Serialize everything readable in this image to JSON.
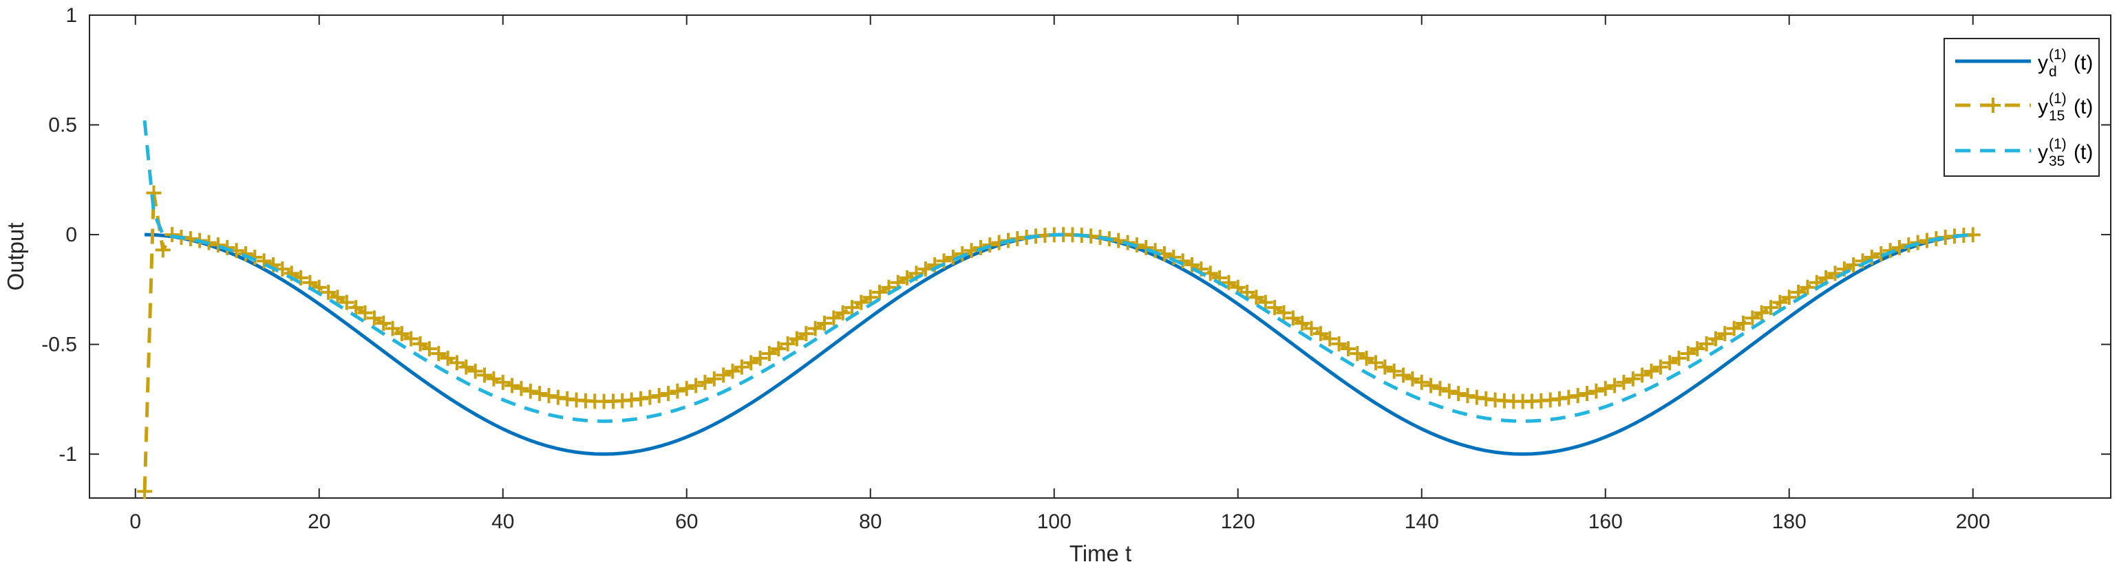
{
  "chart_data": {
    "type": "line",
    "title": "",
    "xlabel": "Time t",
    "ylabel": "Output",
    "xlim": [
      -5,
      215
    ],
    "ylim": [
      -1.2,
      1
    ],
    "xticks": [
      0,
      20,
      40,
      60,
      80,
      100,
      120,
      140,
      160,
      180,
      200
    ],
    "yticks": [
      1,
      0.5,
      0,
      -0.5,
      -1
    ],
    "ytick_labels": [
      "1",
      "0.5",
      "0",
      "-0.5",
      "-1"
    ],
    "grid": false,
    "legend_position": "top-right",
    "series": [
      {
        "name": "y_d^(1)(t)",
        "legend": {
          "base": "y",
          "sub": "d",
          "sup": "(1)",
          "suffix": "(t)"
        },
        "color": "#0072BD",
        "style": "solid",
        "marker": "none",
        "formula": "0.5*cos(2*pi*(t-1)/100) - 0.5",
        "t_range": [
          1,
          200
        ]
      },
      {
        "name": "y_15^(1)(t)",
        "legend": {
          "base": "y",
          "sub": "15",
          "sup": "(1)",
          "suffix": "(t)"
        },
        "color": "#C9A00F",
        "style": "dashed",
        "marker": "plus",
        "formula": "0.38*cos(2*pi*(t-1)/100) - 0.38",
        "transient": [
          [
            1,
            -1.17
          ],
          [
            2,
            0.19
          ],
          [
            3,
            -0.07
          ],
          [
            4,
            0.0
          ]
        ],
        "t_range": [
          1,
          200
        ]
      },
      {
        "name": "y_35^(1)(t)",
        "legend": {
          "base": "y",
          "sub": "35",
          "sup": "(1)",
          "suffix": "(t)"
        },
        "color": "#22B5DF",
        "style": "dashed",
        "marker": "none",
        "formula": "0.425*cos(2*pi*(t-1)/100) - 0.425",
        "transient": [
          [
            1,
            0.52
          ],
          [
            2,
            0.1
          ],
          [
            3,
            0.0
          ]
        ],
        "t_range": [
          1,
          200
        ]
      }
    ]
  }
}
